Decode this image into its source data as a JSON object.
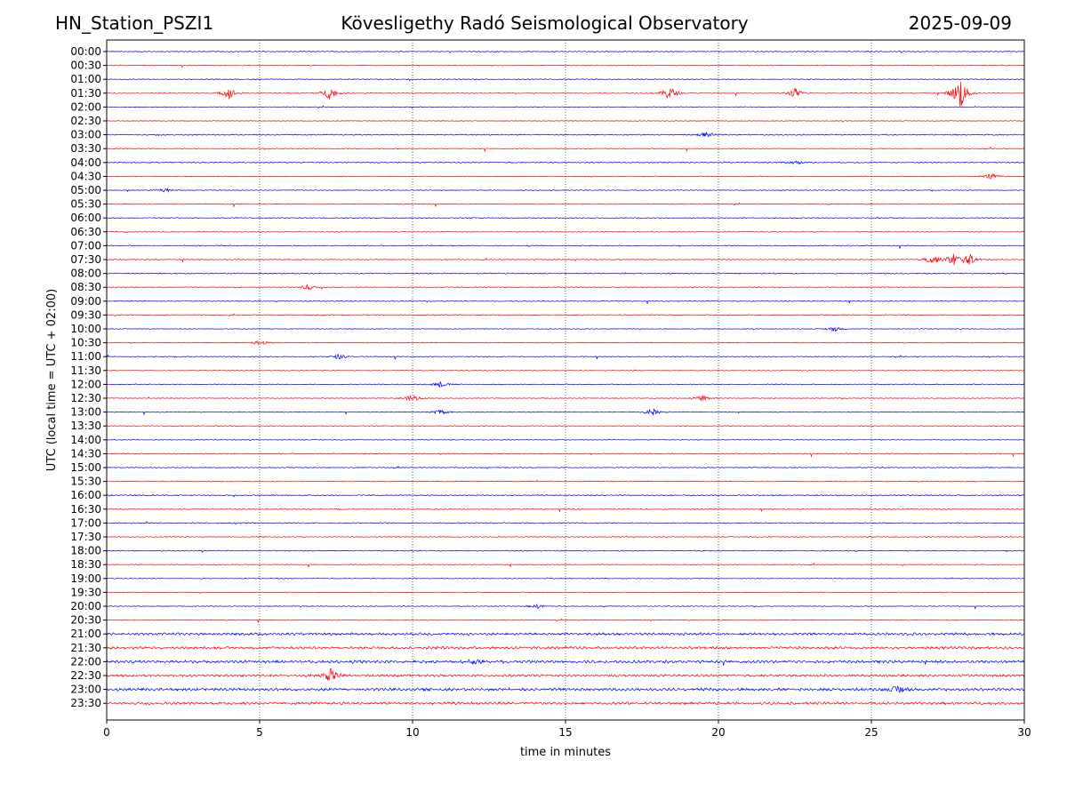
{
  "header": {
    "station": "HN_Station_PSZI1",
    "observatory": "Kövesligethy Radó Seismological Observatory",
    "date": "2025-09-09"
  },
  "chart_data": {
    "type": "line",
    "title": "Kövesligethy Radó Seismological Observatory",
    "xlabel": "time in minutes",
    "ylabel": "UTC (local time = UTC + 02:00)",
    "xlim": [
      0,
      30
    ],
    "xticks": [
      "0",
      "5",
      "10",
      "15",
      "20",
      "25",
      "30"
    ],
    "vertical_gridlines_at": [
      5,
      10,
      15,
      20,
      25
    ],
    "trace_colors": [
      "#0000ff",
      "#ff0000"
    ],
    "row_labels": [
      "00:00",
      "00:30",
      "01:00",
      "01:30",
      "02:00",
      "02:30",
      "03:00",
      "03:30",
      "04:00",
      "04:30",
      "05:00",
      "05:30",
      "06:00",
      "06:30",
      "07:00",
      "07:30",
      "08:00",
      "08:30",
      "09:00",
      "09:30",
      "10:00",
      "10:30",
      "11:00",
      "11:30",
      "12:00",
      "12:30",
      "13:00",
      "13:30",
      "14:00",
      "14:30",
      "15:00",
      "15:30",
      "16:00",
      "16:30",
      "17:00",
      "17:30",
      "18:00",
      "18:30",
      "19:00",
      "19:30",
      "20:00",
      "20:30",
      "21:00",
      "21:30",
      "22:00",
      "22:30",
      "23:00",
      "23:30"
    ],
    "notable_events": [
      {
        "row": "01:30",
        "minute": 4.0,
        "amplitude": 1.2
      },
      {
        "row": "01:30",
        "minute": 7.3,
        "amplitude": 1.3
      },
      {
        "row": "01:30",
        "minute": 18.4,
        "amplitude": 1.5
      },
      {
        "row": "01:30",
        "minute": 22.5,
        "amplitude": 1.0
      },
      {
        "row": "01:30",
        "minute": 27.9,
        "amplitude": 3.5
      },
      {
        "row": "03:00",
        "minute": 19.6,
        "amplitude": 0.5
      },
      {
        "row": "04:00",
        "minute": 22.5,
        "amplitude": 0.4
      },
      {
        "row": "04:30",
        "minute": 28.9,
        "amplitude": 0.6
      },
      {
        "row": "05:00",
        "minute": 1.9,
        "amplitude": 0.5
      },
      {
        "row": "07:30",
        "minute": 27.0,
        "amplitude": 1.0
      },
      {
        "row": "07:30",
        "minute": 27.7,
        "amplitude": 1.2
      },
      {
        "row": "07:30",
        "minute": 28.2,
        "amplitude": 1.0
      },
      {
        "row": "08:30",
        "minute": 6.6,
        "amplitude": 0.6
      },
      {
        "row": "10:00",
        "minute": 23.8,
        "amplitude": 0.5
      },
      {
        "row": "10:30",
        "minute": 5.0,
        "amplitude": 0.5
      },
      {
        "row": "11:00",
        "minute": 7.6,
        "amplitude": 0.5
      },
      {
        "row": "12:00",
        "minute": 10.9,
        "amplitude": 0.6
      },
      {
        "row": "12:30",
        "minute": 10.0,
        "amplitude": 0.8
      },
      {
        "row": "12:30",
        "minute": 19.5,
        "amplitude": 0.6
      },
      {
        "row": "13:00",
        "minute": 10.9,
        "amplitude": 0.6
      },
      {
        "row": "13:00",
        "minute": 17.9,
        "amplitude": 0.7
      },
      {
        "row": "20:00",
        "minute": 14.1,
        "amplitude": 0.4
      },
      {
        "row": "22:00",
        "minute": 12.0,
        "amplitude": 0.4
      },
      {
        "row": "22:30",
        "minute": 7.3,
        "amplitude": 1.3
      },
      {
        "row": "23:00",
        "minute": 25.9,
        "amplitude": 0.8
      }
    ]
  }
}
